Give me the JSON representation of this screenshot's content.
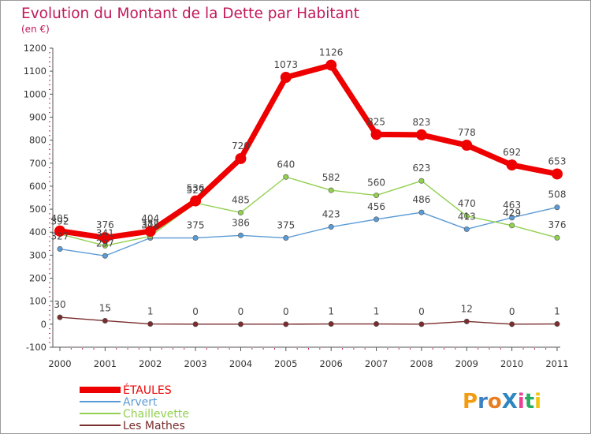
{
  "title": "Evolution du Montant de la Dette par Habitant",
  "subtitle": "(en €)",
  "logo": "ProXiti",
  "chart_data": {
    "type": "line",
    "title": "Evolution du Montant de la Dette par Habitant",
    "subtitle": "(en €)",
    "x": [
      "2000",
      "2001",
      "2002",
      "2003",
      "2004",
      "2005",
      "2006",
      "2007",
      "2008",
      "2009",
      "2010",
      "2011"
    ],
    "ylim": [
      -100,
      1200
    ],
    "yticks": [
      -100,
      0,
      100,
      200,
      300,
      400,
      500,
      600,
      700,
      800,
      900,
      1000,
      1100,
      1200
    ],
    "grid": false,
    "legend_position": "bottom-left",
    "series": [
      {
        "name": "Les Mathes",
        "color": "#7b2c2c",
        "values": [
          30,
          15,
          1,
          0,
          0,
          0,
          1,
          1,
          0,
          12,
          0,
          1
        ]
      },
      {
        "name": "Arvert",
        "color": "#5b9bd5",
        "values": [
          327,
          297,
          375,
          375,
          386,
          375,
          423,
          456,
          486,
          413,
          463,
          508
        ]
      },
      {
        "name": "Chaillevette",
        "color": "#92d050",
        "values": [
          392,
          341,
          382,
          527,
          485,
          640,
          582,
          560,
          623,
          470,
          429,
          376
        ]
      },
      {
        "name": "ÉTAULES",
        "color": "#ee0000",
        "values": [
          405,
          376,
          404,
          536,
          720,
          1073,
          1126,
          825,
          823,
          778,
          692,
          653
        ]
      }
    ],
    "legend": [
      "ÉTAULES",
      "Arvert",
      "Chaillevette",
      "Les Mathes"
    ]
  }
}
